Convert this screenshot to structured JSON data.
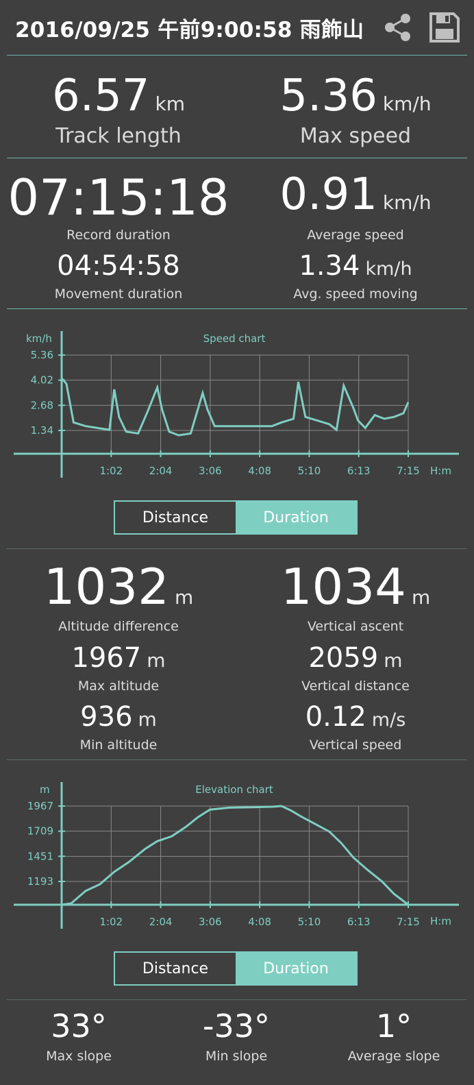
{
  "header": {
    "title": "2016/09/25 午前9:00:58 雨飾山",
    "share_icon": "share-icon",
    "save_icon": "save-icon"
  },
  "summary": {
    "track_length": {
      "value": "6.57",
      "unit": "km",
      "label": "Track length"
    },
    "max_speed": {
      "value": "5.36",
      "unit": "km/h",
      "label": "Max speed"
    }
  },
  "duration": {
    "record": {
      "value": "07:15:18",
      "label": "Record duration"
    },
    "movement": {
      "value": "04:54:58",
      "label": "Movement duration"
    },
    "avg_speed": {
      "value": "0.91",
      "unit": "km/h",
      "label": "Average speed"
    },
    "avg_moving": {
      "value": "1.34",
      "unit": "km/h",
      "label": "Avg. speed moving"
    }
  },
  "speed_chart": {
    "title": "Speed chart",
    "y_unit": "km/h",
    "x_unit": "H:m",
    "y_ticks": [
      "5.36",
      "4.02",
      "2.68",
      "1.34"
    ],
    "x_ticks": [
      "1:02",
      "2:04",
      "3:06",
      "4:08",
      "5:10",
      "6:13",
      "7:15"
    ],
    "toggle": {
      "left": "Distance",
      "right": "Duration",
      "active": "right"
    }
  },
  "altitude": {
    "diff": {
      "value": "1032",
      "unit": "m",
      "label": "Altitude difference"
    },
    "ascent": {
      "value": "1034",
      "unit": "m",
      "label": "Vertical ascent"
    },
    "max": {
      "value": "1967",
      "unit": "m",
      "label": "Max altitude"
    },
    "vdist": {
      "value": "2059",
      "unit": "m",
      "label": "Vertical distance"
    },
    "min": {
      "value": "936",
      "unit": "m",
      "label": "Min altitude"
    },
    "vspeed": {
      "value": "0.12",
      "unit": "m/s",
      "label": "Vertical speed"
    }
  },
  "elevation_chart": {
    "title": "Elevation chart",
    "y_unit": "m",
    "x_unit": "H:m",
    "y_ticks": [
      "1967",
      "1709",
      "1451",
      "1193"
    ],
    "x_ticks": [
      "1:02",
      "2:04",
      "3:06",
      "4:08",
      "5:10",
      "6:13",
      "7:15"
    ],
    "toggle": {
      "left": "Distance",
      "right": "Duration",
      "active": "right"
    }
  },
  "slope": {
    "max": {
      "value": "33°",
      "label": "Max slope"
    },
    "min": {
      "value": "-33°",
      "label": "Min slope"
    },
    "avg": {
      "value": "1°",
      "label": "Average slope"
    }
  },
  "colors": {
    "accent": "#7fcec2",
    "background": "#3f3f3f",
    "grid": "#8a8a8a"
  },
  "chart_data": [
    {
      "type": "line",
      "title": "Speed chart",
      "ylabel": "km/h",
      "xlabel": "H:m",
      "x": [
        0.0,
        0.1,
        0.25,
        0.5,
        0.75,
        1.0,
        1.1,
        1.2,
        1.35,
        1.6,
        1.8,
        2.0,
        2.1,
        2.25,
        2.45,
        2.7,
        2.95,
        3.05,
        3.2,
        3.45,
        3.7,
        3.9,
        4.15,
        4.4,
        4.6,
        4.85,
        4.95,
        5.1,
        5.35,
        5.6,
        5.75,
        5.9,
        6.1,
        6.2,
        6.35,
        6.55,
        6.75,
        6.95,
        7.15,
        7.25
      ],
      "series": [
        {
          "values": [
            4.1,
            3.8,
            1.7,
            1.5,
            1.4,
            1.3,
            3.5,
            2.0,
            1.2,
            1.1,
            2.3,
            3.6,
            2.4,
            1.2,
            1.0,
            1.1,
            3.3,
            2.4,
            1.5,
            1.5,
            1.5,
            1.5,
            1.5,
            1.5,
            1.7,
            1.9,
            3.9,
            2.0,
            1.8,
            1.6,
            1.3,
            3.7,
            2.5,
            1.8,
            1.4,
            2.1,
            1.9,
            2.0,
            2.2,
            2.8
          ]
        }
      ],
      "ylim": [
        0,
        5.36
      ]
    },
    {
      "type": "line",
      "title": "Elevation chart",
      "ylabel": "m",
      "xlabel": "H:m",
      "x": [
        0.0,
        0.2,
        0.5,
        0.8,
        1.1,
        1.4,
        1.75,
        2.0,
        2.3,
        2.6,
        2.85,
        3.1,
        3.5,
        4.0,
        4.4,
        4.6,
        4.8,
        5.0,
        5.3,
        5.6,
        5.85,
        6.1,
        6.4,
        6.7,
        6.95,
        7.25
      ],
      "series": [
        {
          "values": [
            936,
            950,
            1080,
            1150,
            1280,
            1380,
            1520,
            1600,
            1650,
            1750,
            1850,
            1930,
            1950,
            1955,
            1960,
            1967,
            1920,
            1860,
            1780,
            1700,
            1580,
            1430,
            1300,
            1180,
            1050,
            936
          ]
        }
      ],
      "ylim": [
        936,
        1967
      ]
    }
  ]
}
